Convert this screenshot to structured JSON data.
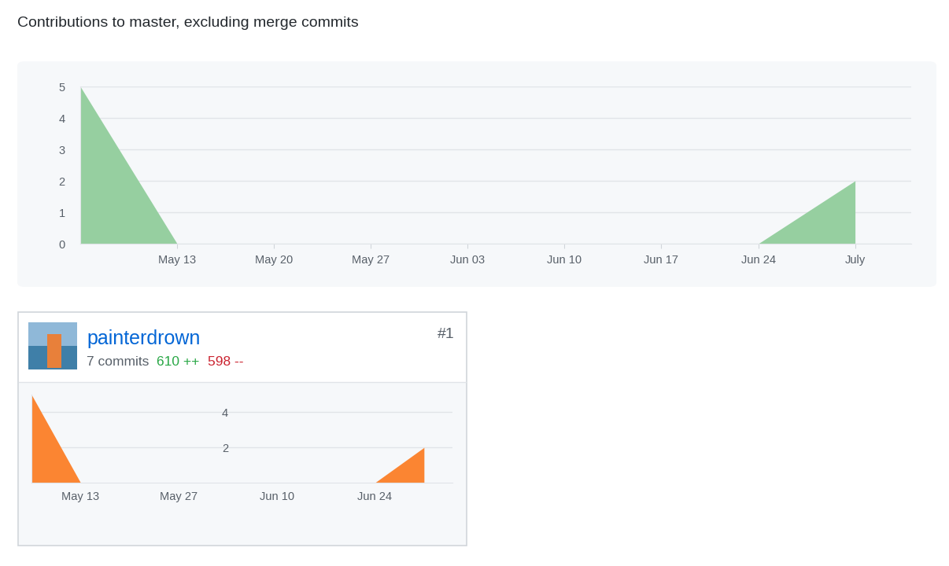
{
  "heading": "Contributions to master, excluding merge commits",
  "chart_data": [
    {
      "type": "area",
      "categories": [
        null,
        "May 13",
        "May 20",
        "May 27",
        "Jun 03",
        "Jun 10",
        "Jun 17",
        "Jun 24",
        "July"
      ],
      "values": [
        5,
        0,
        0,
        0,
        0,
        0,
        0,
        0,
        2
      ],
      "color": "#96cfa0",
      "ylim": [
        0,
        5
      ],
      "yticks": [
        0,
        1,
        2,
        3,
        4,
        5
      ],
      "grid": true
    },
    {
      "type": "area",
      "categories": [
        null,
        "May 13",
        null,
        "May 27",
        null,
        "Jun 10",
        null,
        "Jun 24",
        null
      ],
      "values": [
        5,
        0,
        0,
        0,
        0,
        0,
        0,
        0,
        2
      ],
      "color": "#fb8532",
      "ylim": [
        0,
        5
      ],
      "yticks": [
        2,
        4
      ],
      "grid": true
    }
  ],
  "contributors": [
    {
      "rank": "#1",
      "name": "painterdrown",
      "commits": "7 commits",
      "additions": "610 ++",
      "deletions": "598 --"
    }
  ]
}
